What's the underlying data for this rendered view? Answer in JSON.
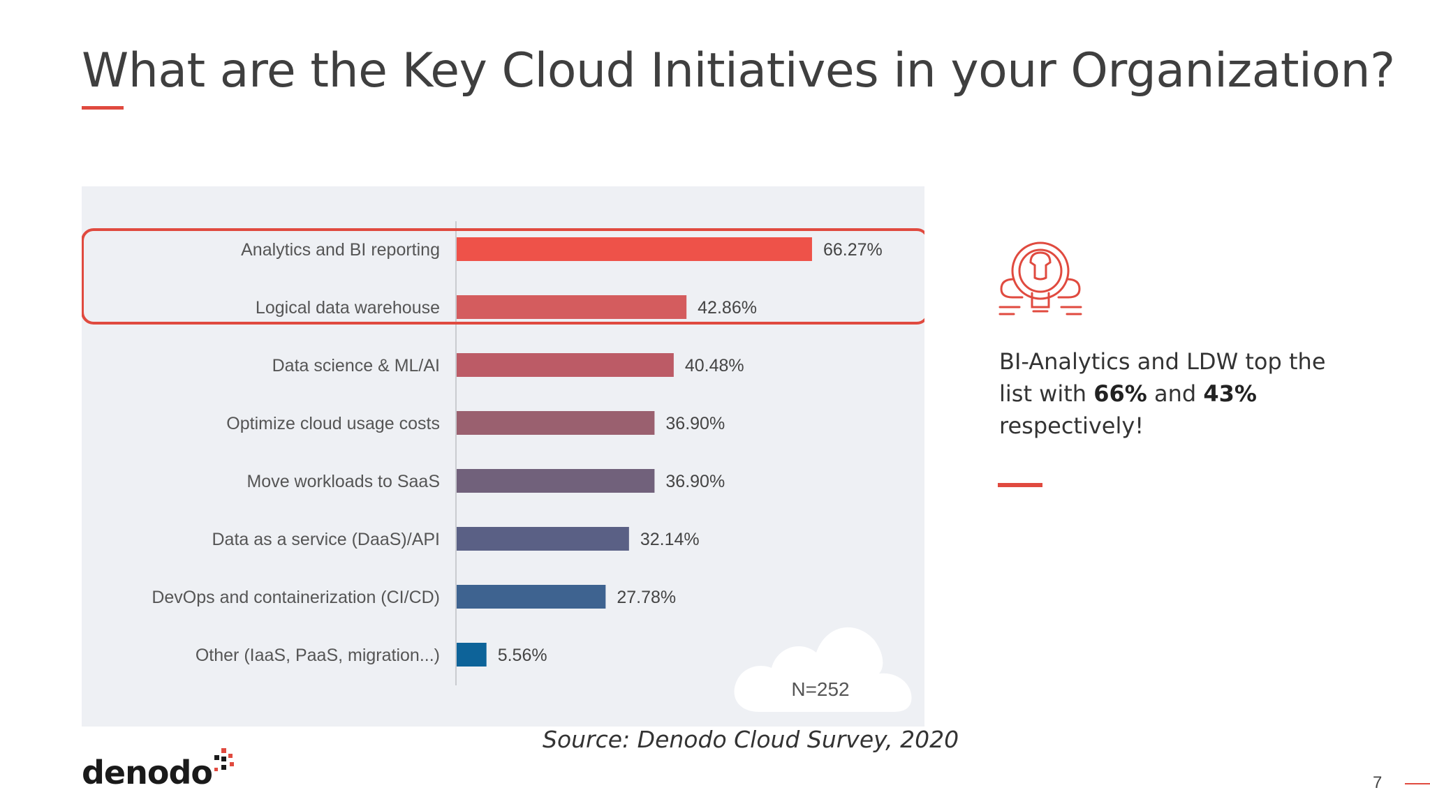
{
  "slide": {
    "title": "What are the Key Cloud Initiatives in your Organization?",
    "side_text_pre": "BI-Analytics and LDW top the list with ",
    "side_text_bold1": "66%",
    "side_text_mid": " and ",
    "side_text_bold2": "43%",
    "side_text_post": " respectively!",
    "source": "Source: Denodo Cloud Survey, 2020",
    "logo": "denodo",
    "page_number": "7",
    "icon": "lightbulb-gear-icon",
    "accent_color": "#e04a3f"
  },
  "chart_data": {
    "type": "bar",
    "orientation": "horizontal",
    "categories": [
      "Analytics and BI reporting",
      "Logical data warehouse",
      "Data science & ML/AI",
      "Optimize cloud usage costs",
      "Move workloads to SaaS",
      "Data as a service (DaaS)/API",
      "DevOps and containerization (CI/CD)",
      "Other (IaaS, PaaS, migration...)"
    ],
    "values": [
      66.27,
      42.86,
      40.48,
      36.9,
      36.9,
      32.14,
      27.78,
      5.56
    ],
    "value_labels": [
      "66.27%",
      "42.86%",
      "40.48%",
      "36.90%",
      "36.90%",
      "32.14%",
      "27.78%",
      "5.56%"
    ],
    "colors": [
      "#ee5249",
      "#d45c5e",
      "#bc5b66",
      "#9a606f",
      "#71617b",
      "#5a6085",
      "#3e6390",
      "#0d6399"
    ],
    "highlighted_categories": [
      "Analytics and BI reporting",
      "Logical data warehouse"
    ],
    "sample_note": "N=252",
    "xlim": [
      0,
      70
    ]
  }
}
